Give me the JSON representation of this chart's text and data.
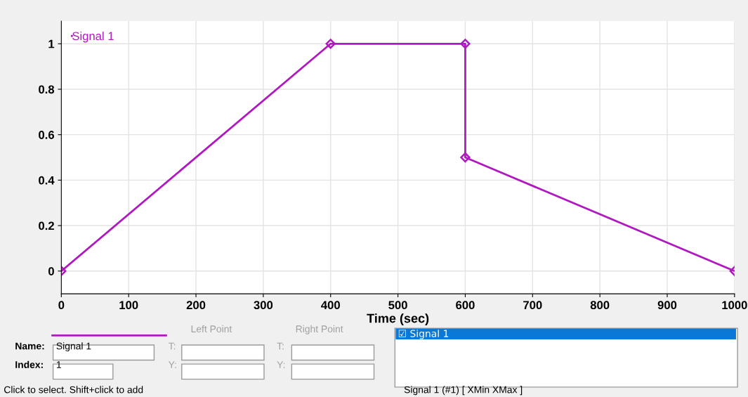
{
  "chart_data": {
    "type": "line",
    "xlabel": "Time (sec)",
    "series": [
      {
        "name": "Signal 1",
        "color": "#b019c0",
        "x": [
          0,
          400,
          600,
          600,
          1000
        ],
        "values": [
          0,
          1,
          1,
          0.5,
          0
        ]
      }
    ],
    "xlim": [
      0,
      1000
    ],
    "xticks": [
      0,
      100,
      200,
      300,
      400,
      500,
      600,
      700,
      800,
      900,
      1000
    ],
    "ylim": [
      -0.1,
      1.1
    ],
    "yticks": [
      0,
      0.2,
      0.4,
      0.6,
      0.8,
      1
    ],
    "grid": true,
    "legend": "top left",
    "marker": "diamond",
    "line_style": "solid",
    "annotations": [
      "Name:",
      "Signal 1",
      "Index:",
      "1",
      "Left Point",
      "Right Point",
      "T:",
      "Y:",
      "T:",
      "Y:",
      "☑ Signal 1",
      "Click to select. Shift+click to add",
      "Signal 1 (#1) [ XMin XMax ]"
    ]
  }
}
